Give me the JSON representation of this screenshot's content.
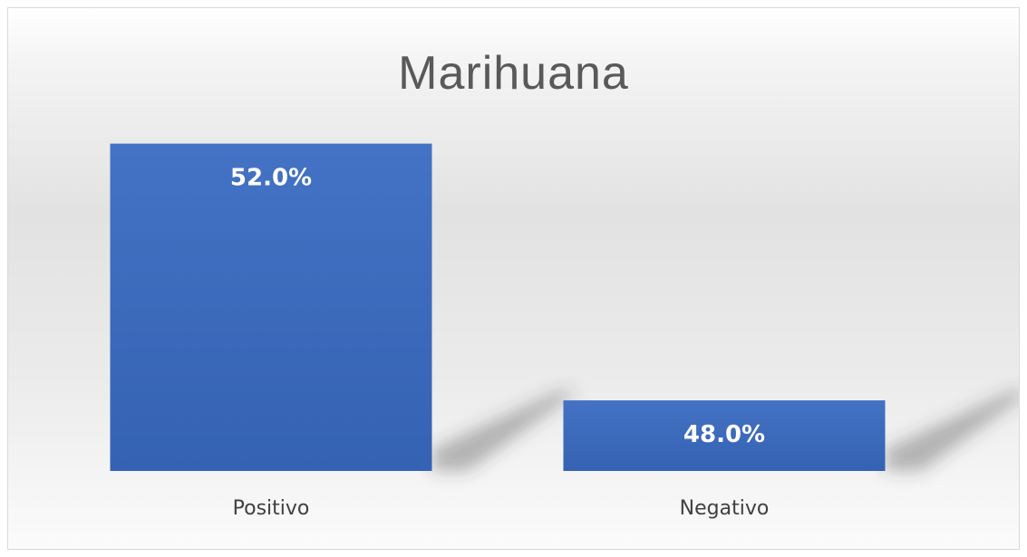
{
  "chart_data": {
    "type": "bar",
    "title": "Marihuana",
    "categories": [
      "Positivo",
      "Negativo"
    ],
    "values": [
      52.0,
      48.0
    ],
    "data_labels": [
      "52.0%",
      "48.0%"
    ],
    "ylim": [
      46.9,
      52.7
    ],
    "grid": false,
    "legend": "none",
    "bar_color": "#4472c4"
  }
}
